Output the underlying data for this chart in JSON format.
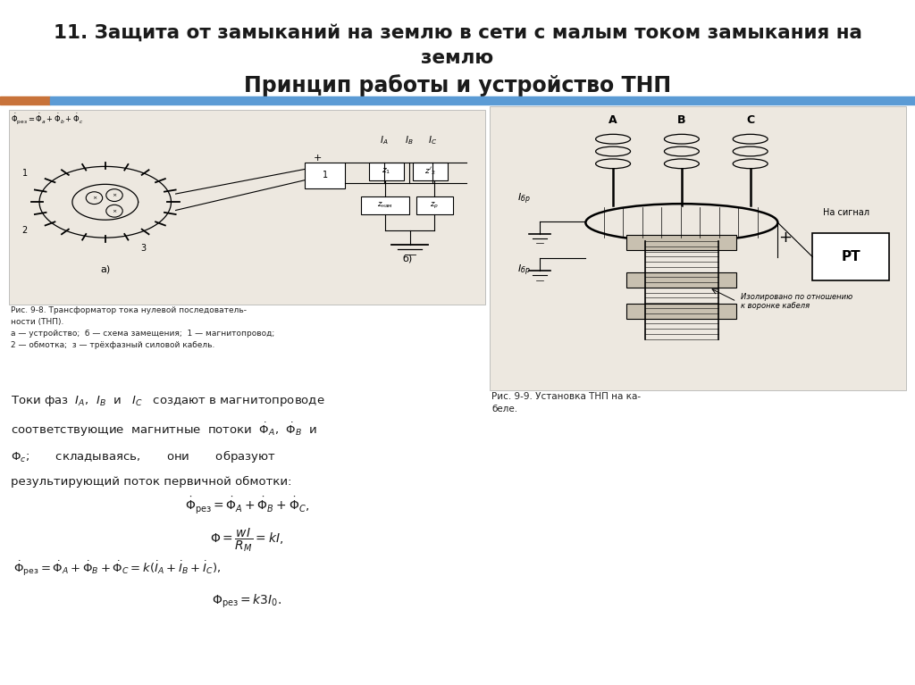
{
  "title_line1": "11. Защита от замыканий на землю в сети с малым током замыкания на",
  "title_line2": "землю",
  "subtitle": "Принцип работы и устройство ТНП",
  "bg_color": "#ffffff",
  "bar_color_orange": "#c8733a",
  "bar_color_blue": "#5b9bd5",
  "text_color": "#1a1a1a",
  "body_text": [
    "Токи фаз  $I_A$,  $I_B$  и   $I_C$   создают в магнитопроводе",
    "соответствующие  магнитные  потоки  $\\dot{\\Phi}_A$,  $\\dot{\\Phi}_B$  и",
    "$\\Phi_c$;       складываясь,       они       образуют",
    "результирующий поток первичной обмотки:"
  ],
  "formula1": "$\\dot{\\Phi}_{\\text{рез}}=\\dot{\\Phi}_A+\\dot{\\Phi}_B+\\dot{\\Phi}_C,$",
  "formula2": "$\\Phi=\\dfrac{wI}{R_M}=kI,$",
  "formula3": "$\\dot{\\Phi}_{\\text{рез}}=\\dot{\\Phi}_A+\\dot{\\Phi}_B+\\dot{\\Phi}_C=k(\\dot{I}_A+\\dot{I}_B+\\dot{I}_C),$",
  "formula4": "$\\Phi_{\\text{рез}}=k3I_0.$",
  "fig_caption_left": "Рис. 9-8. Трансформатор тока нулевой последователь-\nности (ТНП).\nа — устройство;  б — схема замещения;  1 — магнитопровод;\n2 — обмотка;  з — трёхфазный силовой кабель.",
  "fig_caption_right": "Рис. 9-9. Установка ТНП на ка-\nбеле."
}
